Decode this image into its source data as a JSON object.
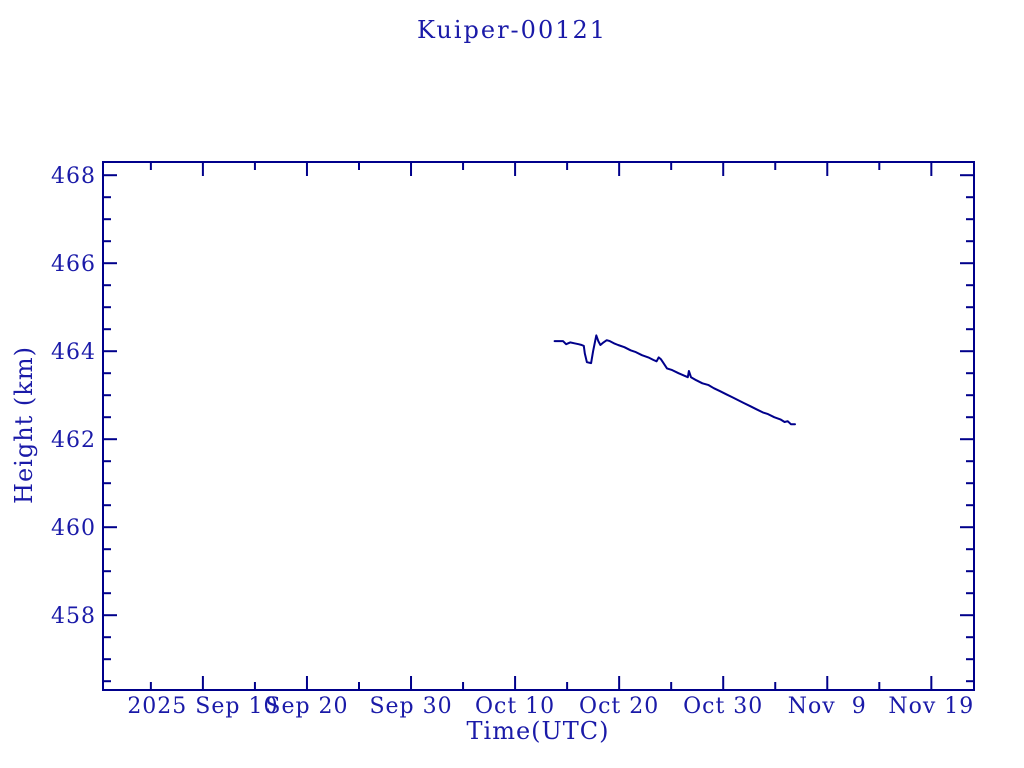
{
  "colors": {
    "background": "#ffffff",
    "text": "#1a1aa8",
    "axis": "#00008b",
    "line": "#00008b"
  },
  "chart_data": {
    "type": "line",
    "title": "Kuiper-00121",
    "xlabel": "Time(UTC)",
    "ylabel": "Height (km)",
    "x_unit": "days since 2025-09-01 (UTC)",
    "xlim": [
      -0.6,
      83.1
    ],
    "ylim": [
      456.3,
      468.3
    ],
    "grid": false,
    "legend": null,
    "x_major_ticks": [
      {
        "day": 9,
        "label": "2025 Sep 10"
      },
      {
        "day": 19,
        "label": "Sep 20"
      },
      {
        "day": 29,
        "label": "Sep 30"
      },
      {
        "day": 39,
        "label": "Oct 10"
      },
      {
        "day": 49,
        "label": "Oct 20"
      },
      {
        "day": 59,
        "label": "Oct 30"
      },
      {
        "day": 69,
        "label": "Nov  9"
      },
      {
        "day": 79,
        "label": "Nov 19"
      }
    ],
    "x_minor_tick_days": [
      4,
      14,
      24,
      34,
      44,
      54,
      64,
      74
    ],
    "y_major_ticks": [
      {
        "value": 458,
        "label": "458"
      },
      {
        "value": 460,
        "label": "460"
      },
      {
        "value": 462,
        "label": "462"
      },
      {
        "value": 464,
        "label": "464"
      },
      {
        "value": 466,
        "label": "466"
      },
      {
        "value": 468,
        "label": "468"
      }
    ],
    "y_minor_tick_step": 0.5,
    "series": [
      {
        "name": "Kuiper-00121 height",
        "color": "#00008b",
        "points": [
          [
            42.8,
            464.23
          ],
          [
            43.6,
            464.23
          ],
          [
            43.9,
            464.16
          ],
          [
            44.3,
            464.2
          ],
          [
            44.7,
            464.18
          ],
          [
            45.1,
            464.16
          ],
          [
            45.4,
            464.14
          ],
          [
            45.6,
            464.12
          ],
          [
            45.7,
            463.95
          ],
          [
            45.9,
            463.75
          ],
          [
            46.3,
            463.73
          ],
          [
            46.5,
            464.0
          ],
          [
            46.8,
            464.36
          ],
          [
            47.0,
            464.23
          ],
          [
            47.2,
            464.14
          ],
          [
            47.5,
            464.2
          ],
          [
            47.8,
            464.25
          ],
          [
            48.1,
            464.23
          ],
          [
            48.5,
            464.18
          ],
          [
            48.9,
            464.14
          ],
          [
            49.5,
            464.09
          ],
          [
            50.1,
            464.02
          ],
          [
            50.6,
            463.98
          ],
          [
            51.2,
            463.91
          ],
          [
            51.8,
            463.86
          ],
          [
            52.3,
            463.8
          ],
          [
            52.6,
            463.77
          ],
          [
            52.8,
            463.86
          ],
          [
            53.0,
            463.82
          ],
          [
            53.2,
            463.75
          ],
          [
            53.6,
            463.61
          ],
          [
            54.1,
            463.57
          ],
          [
            54.7,
            463.5
          ],
          [
            55.2,
            463.45
          ],
          [
            55.6,
            463.41
          ],
          [
            55.7,
            463.55
          ],
          [
            55.9,
            463.41
          ],
          [
            56.4,
            463.34
          ],
          [
            57.0,
            463.27
          ],
          [
            57.6,
            463.23
          ],
          [
            58.1,
            463.16
          ],
          [
            58.7,
            463.09
          ],
          [
            59.3,
            463.02
          ],
          [
            59.9,
            462.95
          ],
          [
            60.4,
            462.89
          ],
          [
            61.0,
            462.82
          ],
          [
            61.6,
            462.75
          ],
          [
            62.2,
            462.68
          ],
          [
            62.8,
            462.61
          ],
          [
            63.3,
            462.57
          ],
          [
            63.9,
            462.5
          ],
          [
            64.5,
            462.45
          ],
          [
            64.9,
            462.39
          ],
          [
            65.2,
            462.41
          ],
          [
            65.5,
            462.34
          ],
          [
            65.9,
            462.34
          ]
        ]
      }
    ]
  }
}
